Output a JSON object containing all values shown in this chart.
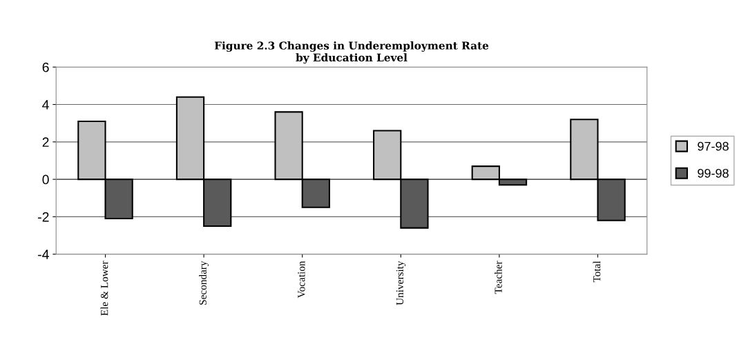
{
  "chart_data": {
    "type": "bar",
    "title": "Figure 2.3 Changes in Underemployment Rate\nby Education Level",
    "categories": [
      "Ele & Lower",
      "Secondary",
      "Vocation",
      "University",
      "Teacher",
      "Total"
    ],
    "series": [
      {
        "name": "97-98",
        "color": "#c0c0c0",
        "values": [
          3.1,
          4.4,
          3.6,
          2.6,
          0.7,
          3.2
        ]
      },
      {
        "name": "99-98",
        "color": "#5a5a5a",
        "values": [
          -2.1,
          -2.5,
          -1.5,
          -2.6,
          -0.3,
          -2.2
        ]
      }
    ],
    "ylim": [
      -4,
      6
    ],
    "yticks": [
      -4,
      -2,
      0,
      2,
      4,
      6
    ],
    "grid": "y",
    "legend": "right"
  }
}
